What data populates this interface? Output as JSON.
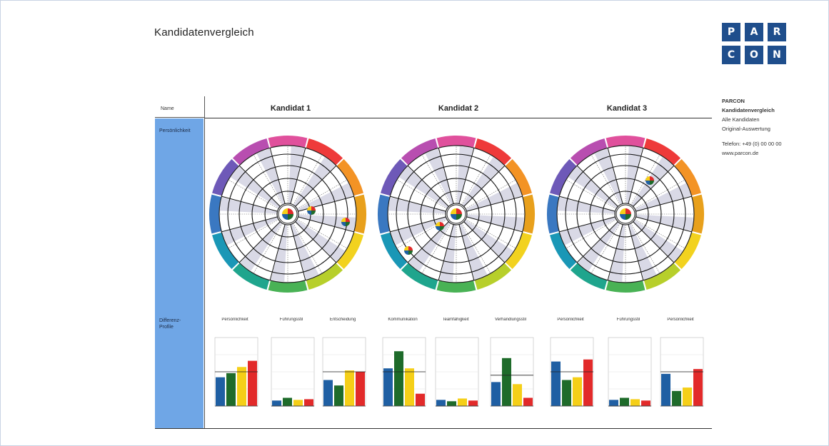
{
  "page": {
    "title": "Kandidatenvergleich"
  },
  "logo": {
    "letters": [
      "P",
      "A",
      "R",
      "C",
      "O",
      "N"
    ]
  },
  "info": {
    "line1": "PARCON",
    "line2": "Kandidatenvergleich",
    "line3": "Alle Kandidaten",
    "line4": "Original-Auswertung",
    "line5": "Telefon: +49 (0) 00 00 00",
    "line6": "www.parcon.de"
  },
  "table": {
    "name_label": "Name",
    "row1_label": "Persönlichkeit",
    "row2_label": "Differenz-Profile",
    "candidates": [
      "Kandidat 1",
      "Kandidat 2",
      "Kandidat 3"
    ]
  },
  "colors": {
    "blue": "#1f5fa3",
    "green": "#1e6b2a",
    "yellow": "#f5cf18",
    "red": "#e22a2a",
    "navy": "#1f4e8c"
  },
  "chart_data": [
    {
      "type": "bar",
      "title": "Persönlichkeit",
      "series": [
        {
          "values": [
            42,
            48,
            57,
            66
          ]
        }
      ],
      "reference": 50
    },
    {
      "type": "bar",
      "title": "Führungsstil",
      "series": [
        {
          "values": [
            8,
            12,
            9,
            10
          ]
        }
      ],
      "reference": 0
    },
    {
      "type": "bar",
      "title": "Entscheidung",
      "series": [
        {
          "values": [
            38,
            30,
            52,
            50
          ]
        }
      ],
      "reference": 50
    },
    {
      "type": "bar",
      "title": "Kommunikation",
      "series": [
        {
          "values": [
            55,
            80,
            55,
            18
          ]
        }
      ],
      "reference": 50
    },
    {
      "type": "bar",
      "title": "Teamfähigkeit",
      "series": [
        {
          "values": [
            9,
            7,
            11,
            8
          ]
        }
      ],
      "reference": 0
    },
    {
      "type": "bar",
      "title": "Verhandlungsstil",
      "series": [
        {
          "values": [
            35,
            70,
            32,
            12
          ]
        }
      ],
      "reference": 45
    },
    {
      "type": "bar",
      "title": "Persönlichkeit",
      "series": [
        {
          "values": [
            65,
            38,
            42,
            68
          ]
        }
      ],
      "reference": 50
    },
    {
      "type": "bar",
      "title": "Führungsstil",
      "series": [
        {
          "values": [
            9,
            12,
            10,
            8
          ]
        }
      ],
      "reference": 0
    },
    {
      "type": "bar",
      "title": "Persönlichkeit",
      "series": [
        {
          "values": [
            47,
            22,
            27,
            54
          ]
        }
      ],
      "reference": 50
    }
  ]
}
